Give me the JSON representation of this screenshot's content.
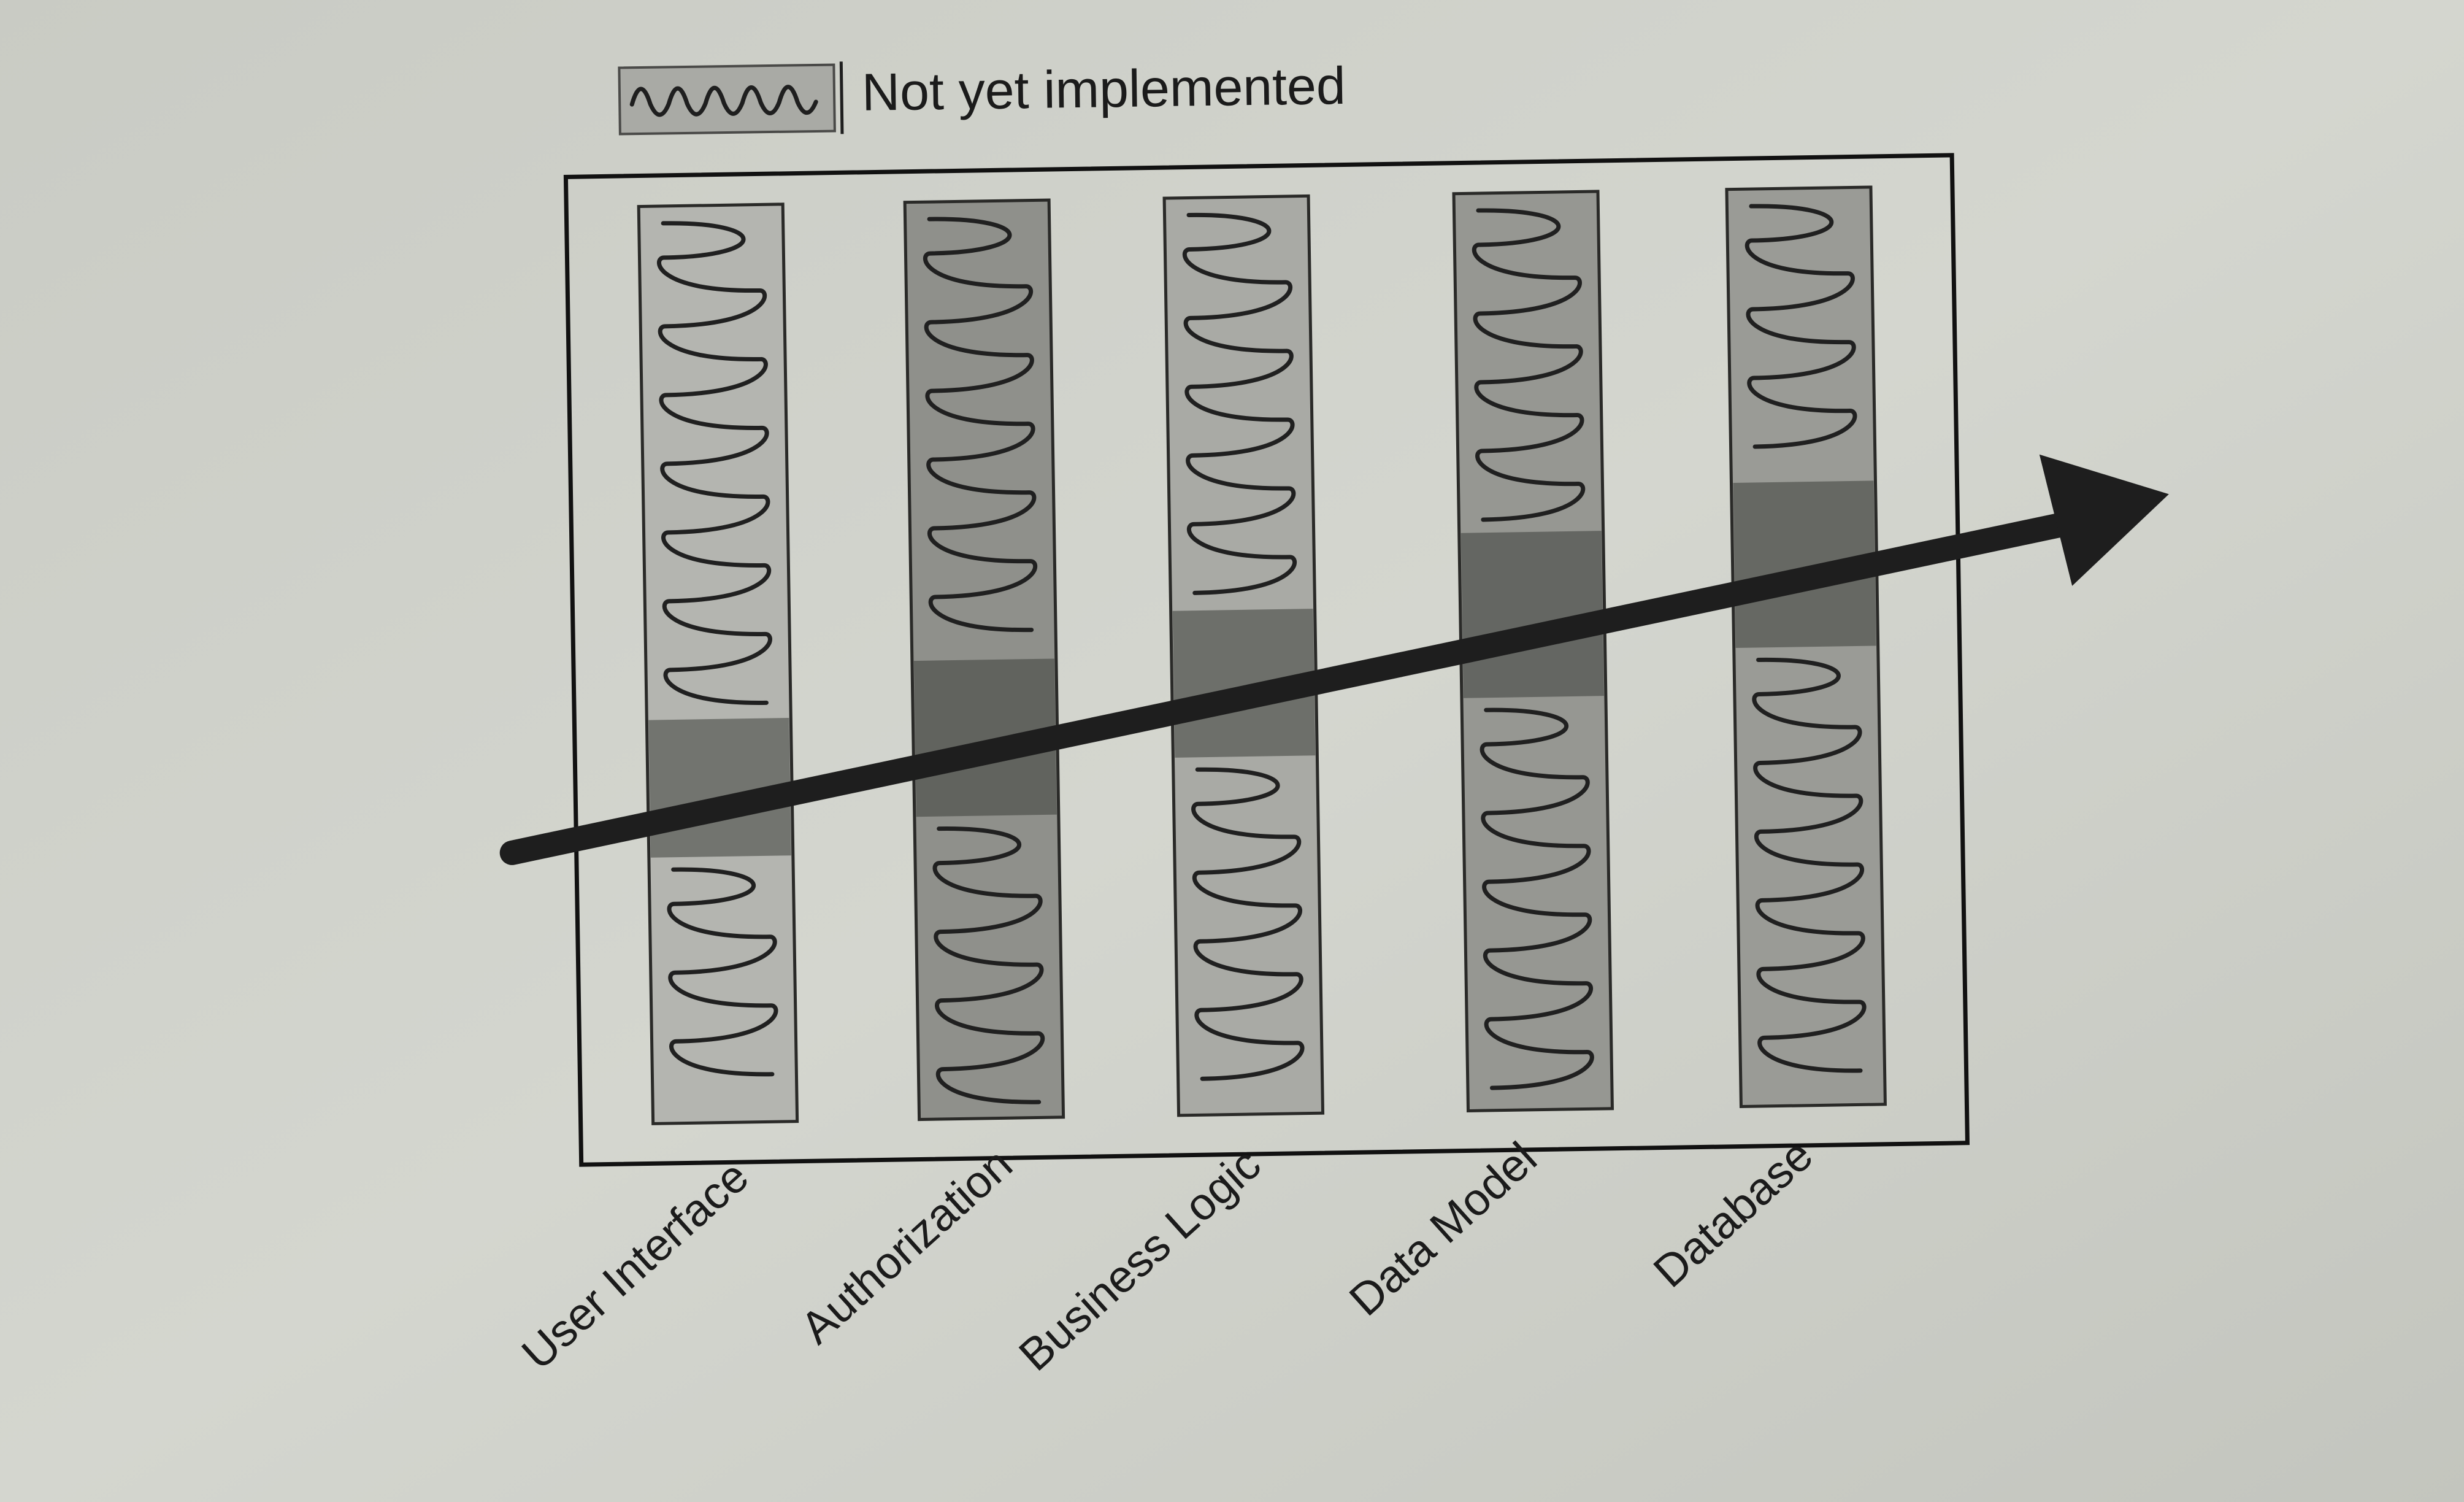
{
  "legend": {
    "label": "Not yet implemented",
    "icon": "squiggle-swatch-icon"
  },
  "layers": [
    {
      "id": "user-interface",
      "label": "User Interface",
      "fill": "#b4b5b0",
      "implemented": [
        0.56,
        0.71
      ]
    },
    {
      "id": "authorization",
      "label": "Authorization",
      "fill": "#8f908b",
      "implemented": [
        0.5,
        0.67
      ]
    },
    {
      "id": "business-logic",
      "label": "Business Logic",
      "fill": "#a9aaa5",
      "implemented": [
        0.45,
        0.61
      ]
    },
    {
      "id": "data-model",
      "label": "Data Model",
      "fill": "#969792",
      "implemented": [
        0.37,
        0.55
      ]
    },
    {
      "id": "database",
      "label": "Database",
      "fill": "#9a9b96",
      "implemented": [
        0.32,
        0.5
      ]
    }
  ],
  "colors": {
    "page": "#cfd1cb",
    "frame": "#111111",
    "arrow": "#1e1e1e",
    "implemented_band": "#3d3e3a",
    "squiggle": "#202020"
  }
}
